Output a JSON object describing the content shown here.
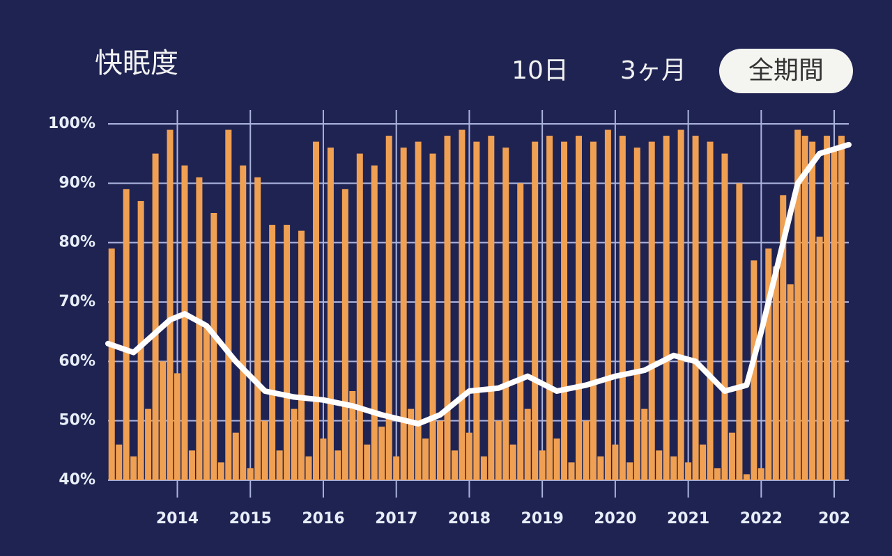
{
  "chart_data": {
    "type": "bar",
    "title": "快眠度",
    "x": [
      2013.1,
      2013.2,
      2013.3,
      2013.4,
      2013.5,
      2013.6,
      2013.7,
      2013.8,
      2013.9,
      2014.0,
      2014.1,
      2014.2,
      2014.3,
      2014.4,
      2014.5,
      2014.6,
      2014.7,
      2014.8,
      2014.9,
      2015.0,
      2015.1,
      2015.2,
      2015.3,
      2015.4,
      2015.5,
      2015.6,
      2015.7,
      2015.8,
      2015.9,
      2016.0,
      2016.1,
      2016.2,
      2016.3,
      2016.4,
      2016.5,
      2016.6,
      2016.7,
      2016.8,
      2016.9,
      2017.0,
      2017.1,
      2017.2,
      2017.3,
      2017.4,
      2017.5,
      2017.6,
      2017.7,
      2017.8,
      2017.9,
      2018.0,
      2018.1,
      2018.2,
      2018.3,
      2018.4,
      2018.5,
      2018.6,
      2018.7,
      2018.8,
      2018.9,
      2019.0,
      2019.1,
      2019.2,
      2019.3,
      2019.4,
      2019.5,
      2019.6,
      2019.7,
      2019.8,
      2019.9,
      2020.0,
      2020.1,
      2020.2,
      2020.3,
      2020.4,
      2020.5,
      2020.6,
      2020.7,
      2020.8,
      2020.9,
      2021.0,
      2021.1,
      2021.2,
      2021.3,
      2021.4,
      2021.5,
      2021.6,
      2021.7,
      2021.8,
      2021.9,
      2022.0,
      2022.1,
      2022.2,
      2022.3,
      2022.4,
      2022.5,
      2022.6,
      2022.7,
      2022.8,
      2022.9,
      2023.0,
      2023.1
    ],
    "series": [
      {
        "color": "#f0a052",
        "values": [
          79,
          46,
          89,
          44,
          87,
          52,
          95,
          60,
          99,
          58,
          93,
          45,
          91,
          66,
          85,
          43,
          99,
          48,
          93,
          42,
          91,
          50,
          83,
          45,
          83,
          52,
          82,
          44,
          97,
          47,
          96,
          45,
          89,
          55,
          95,
          46,
          93,
          49,
          98,
          44,
          96,
          52,
          97,
          47,
          95,
          50,
          98,
          45,
          99,
          48,
          97,
          44,
          98,
          50,
          96,
          46,
          90,
          52,
          97,
          45,
          98,
          47,
          97,
          43,
          98,
          50,
          97,
          44,
          99,
          46,
          98,
          43,
          96,
          52,
          97,
          45,
          98,
          44,
          99,
          43,
          98,
          46,
          97,
          42,
          95,
          48,
          90,
          41,
          77,
          42,
          79,
          76,
          88,
          73,
          99,
          98,
          97,
          81,
          98,
          96,
          98
        ]
      }
    ],
    "trend": {
      "type": "line",
      "color": "#ffffff",
      "x": [
        2013.05,
        2013.4,
        2013.9,
        2014.1,
        2014.4,
        2014.8,
        2015.2,
        2015.6,
        2016.0,
        2016.4,
        2016.8,
        2017.3,
        2017.6,
        2018.0,
        2018.4,
        2018.8,
        2019.2,
        2019.6,
        2020.0,
        2020.4,
        2020.8,
        2021.1,
        2021.5,
        2021.8,
        2022.0,
        2022.3,
        2022.5,
        2022.8,
        2023.2
      ],
      "values": [
        63,
        61.5,
        67,
        68,
        66,
        60,
        55,
        54,
        53.5,
        52.5,
        51,
        49.5,
        51,
        55,
        55.5,
        57.5,
        55,
        56,
        57.5,
        58.5,
        61,
        60,
        55,
        56,
        65,
        80,
        90,
        95,
        96.5
      ]
    },
    "xlim": [
      2013.05,
      2023.2
    ],
    "xticks": [
      2014,
      2015,
      2016,
      2017,
      2018,
      2019,
      2020,
      2021,
      2022,
      {
        "value": 2023,
        "label": "202"
      }
    ],
    "ylim": [
      40,
      100
    ],
    "yticks": [
      {
        "value": 40,
        "label": "40%"
      },
      {
        "value": 50,
        "label": "50%"
      },
      {
        "value": 60,
        "label": "60%"
      },
      {
        "value": 70,
        "label": "70%"
      },
      {
        "value": 80,
        "label": "80%"
      },
      {
        "value": 90,
        "label": "90%"
      },
      {
        "value": 100,
        "label": "100%"
      }
    ],
    "grid": true
  },
  "controls": {
    "buttons": [
      "10日",
      "3ヶ月",
      "全期間"
    ],
    "selected": 2
  }
}
